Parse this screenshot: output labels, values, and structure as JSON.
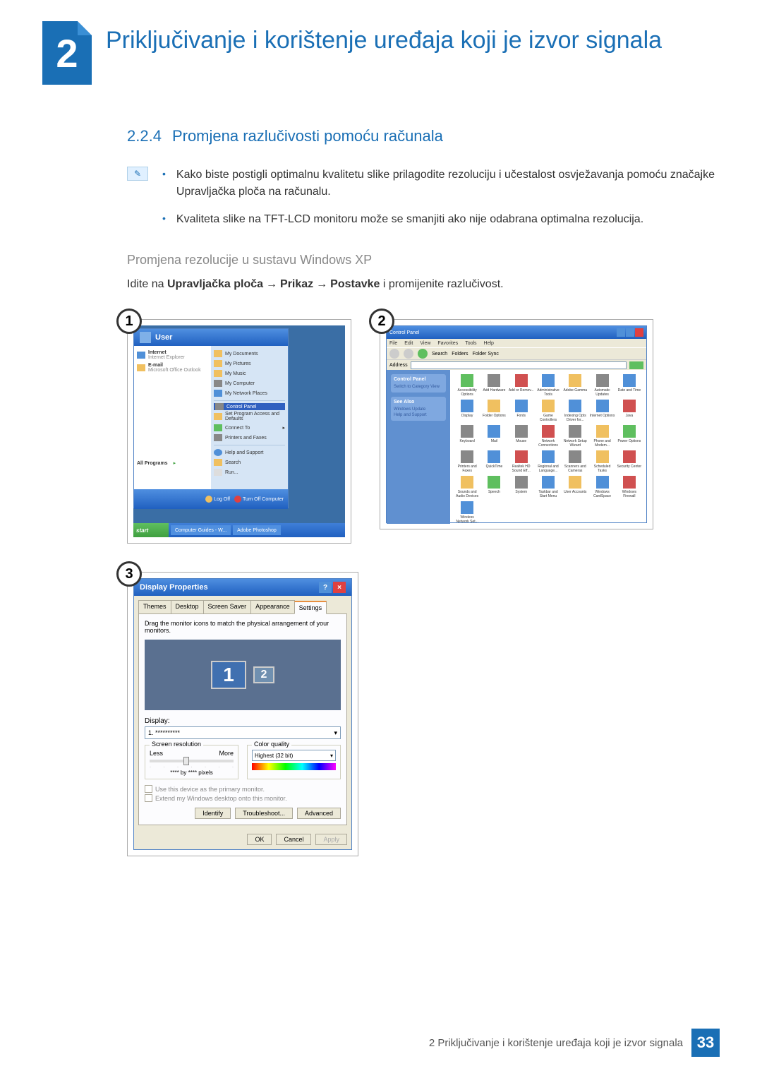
{
  "chapter": {
    "num": "2",
    "title": "Priključivanje i korištenje uređaja koji je izvor signala"
  },
  "section": {
    "num": "2.2.4",
    "title": "Promjena razlučivosti pomoću računala"
  },
  "bullets": [
    "Kako biste postigli optimalnu kvalitetu slike prilagodite rezoluciju i učestalost osvježavanja pomoću značajke Upravljačka ploča na računalu.",
    "Kvaliteta slike na TFT-LCD monitoru može se smanjiti ako nije odabrana optimalna rezolucija."
  ],
  "subsection": "Promjena rezolucije u sustavu Windows XP",
  "nav": {
    "prefix": "Idite na ",
    "b1": "Upravljačka ploča",
    "b2": "Prikaz",
    "b3": "Postavke",
    "suffix": " i promijenite razlučivost."
  },
  "badges": {
    "s1": "1",
    "s2": "2",
    "s3": "3"
  },
  "xp": {
    "user": "User",
    "left": {
      "internet": "Internet",
      "ie": "Internet Explorer",
      "email": "E-mail",
      "outlook": "Microsoft Office Outlook",
      "allprog": "All Programs"
    },
    "right": {
      "docs": "My Documents",
      "pics": "My Pictures",
      "music": "My Music",
      "comp": "My Computer",
      "net": "My Network Places",
      "cpanel": "Control Panel",
      "prog": "Set Program Access and Defaults",
      "conn": "Connect To",
      "prn": "Printers and Faxes",
      "help": "Help and Support",
      "search": "Search",
      "run": "Run..."
    },
    "logoff": "Log Off",
    "shutdown": "Turn Off Computer",
    "start": "start",
    "task1": "Computer Guides - W...",
    "task2": "Adobe Photoshop"
  },
  "cp": {
    "title": "Control Panel",
    "menu": {
      "file": "File",
      "edit": "Edit",
      "view": "View",
      "fav": "Favorites",
      "tools": "Tools",
      "help": "Help"
    },
    "toolbar": {
      "search": "Search",
      "folders": "Folders",
      "sync": "Folder Sync"
    },
    "addr": "Address",
    "addrval": "Control Panel",
    "go": "Go",
    "side": {
      "head1": "Control Panel",
      "switch": "Switch to Category View",
      "head2": "See Also",
      "wu": "Windows Update",
      "hs": "Help and Support"
    },
    "icons": [
      "Accessibility Options",
      "Add Hardware",
      "Add or Remov...",
      "Administrative Tools",
      "Adobe Gamma",
      "Automatic Updates",
      "Date and Time",
      "Display",
      "Folder Options",
      "Fonts",
      "Game Controllers",
      "Indexing Opts Driver for...",
      "Internet Options",
      "Java",
      "Keyboard",
      "Mail",
      "Mouse",
      "Network Connections",
      "Network Setup Wizard",
      "Phone and Modem...",
      "Power Options",
      "Printers and Faxes",
      "QuickTime",
      "Realtek HD Sound Eff...",
      "Regional and Language...",
      "Scanners and Cameras",
      "Scheduled Tasks",
      "Security Center",
      "Sounds and Audio Devices",
      "Speech",
      "System",
      "Taskbar and Start Menu",
      "User Accounts",
      "Windows CardSpace",
      "Windows Firewall",
      "Wireless Network Set..."
    ]
  },
  "dp": {
    "title": "Display Properties",
    "tabs": {
      "themes": "Themes",
      "desktop": "Desktop",
      "ss": "Screen Saver",
      "app": "Appearance",
      "set": "Settings"
    },
    "instr": "Drag the monitor icons to match the physical arrangement of your monitors.",
    "mon1": "1",
    "mon2": "2",
    "disp": "Display:",
    "dispval": "1. **********",
    "res": "Screen resolution",
    "less": "Less",
    "more": "More",
    "resval": "**** by **** pixels",
    "cq": "Color quality",
    "cqval": "Highest (32 bit)",
    "chk1": "Use this device as the primary monitor.",
    "chk2": "Extend my Windows desktop onto this monitor.",
    "identify": "Identify",
    "trouble": "Troubleshoot...",
    "adv": "Advanced",
    "ok": "OK",
    "cancel": "Cancel",
    "apply": "Apply"
  },
  "footer": {
    "text": "2 Priključivanje i korištenje uređaja koji je izvor signala",
    "page": "33"
  }
}
